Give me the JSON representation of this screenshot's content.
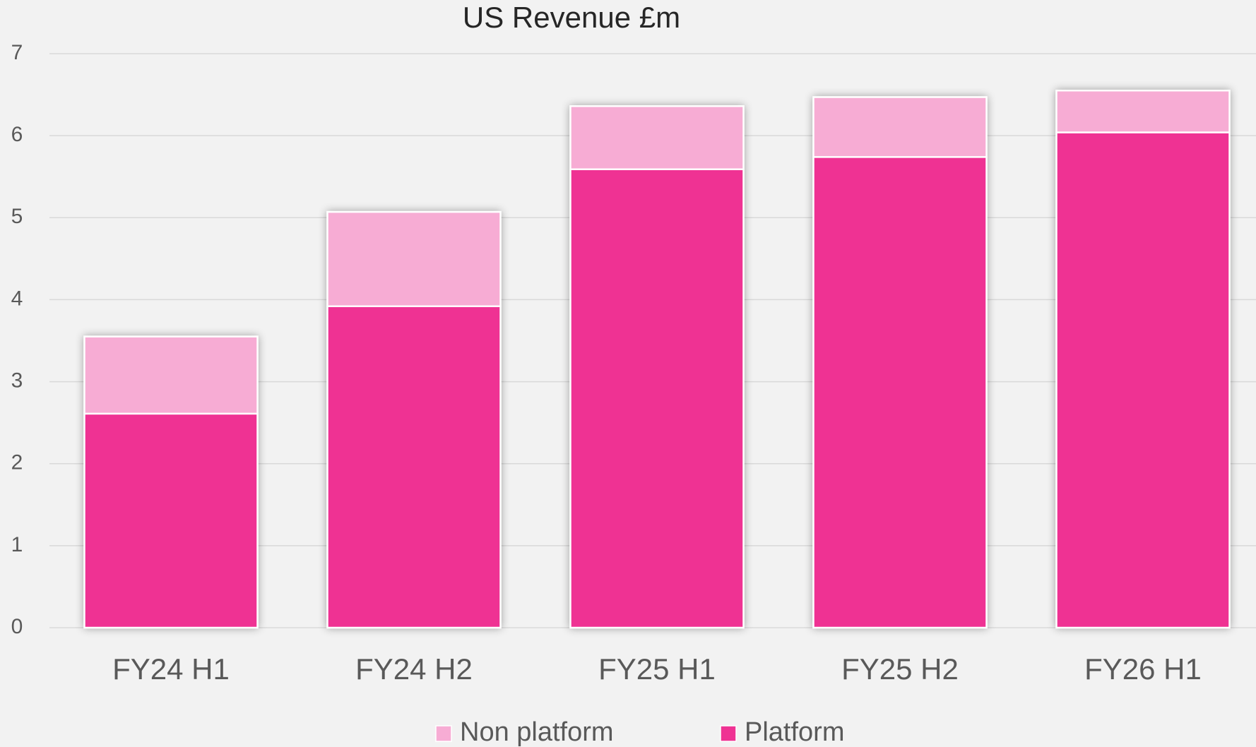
{
  "chart_data": {
    "type": "stacked_bar",
    "title": "US Revenue £m",
    "categories": [
      "FY24 H1",
      "FY24 H2",
      "FY25 H1",
      "FY25 H2",
      "FY26 H1"
    ],
    "series": [
      {
        "name": "Non platform",
        "color": "#f7acd4",
        "values": [
          0.94,
          1.15,
          0.77,
          0.73,
          0.51
        ]
      },
      {
        "name": "Platform",
        "color": "#ef3293",
        "values": [
          2.61,
          3.92,
          5.59,
          5.74,
          6.04
        ]
      }
    ],
    "ylim": [
      0,
      7
    ],
    "yticks": [
      0,
      1,
      2,
      3,
      4,
      5,
      6,
      7
    ],
    "grid": true,
    "legend": "bottom"
  }
}
